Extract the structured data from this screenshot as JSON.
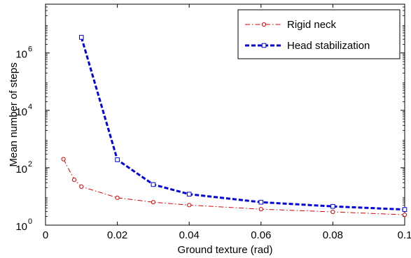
{
  "chart_data": {
    "type": "line",
    "title": "",
    "xlabel": "Ground texture (rad)",
    "ylabel": "Mean number of steps",
    "yscale": "log",
    "xlim": [
      0,
      0.1
    ],
    "ylim": [
      1,
      50000000
    ],
    "grid": false,
    "legend_position": "top-right",
    "x_ticks": [
      {
        "value": 0,
        "label": "0"
      },
      {
        "value": 0.02,
        "label": "0.02"
      },
      {
        "value": 0.04,
        "label": "0.04"
      },
      {
        "value": 0.06,
        "label": "0.06"
      },
      {
        "value": 0.08,
        "label": "0.08"
      },
      {
        "value": 0.1,
        "label": "0.1"
      }
    ],
    "y_ticks": [
      {
        "value": 1,
        "base": "10",
        "exp": "0"
      },
      {
        "value": 100,
        "base": "10",
        "exp": "2"
      },
      {
        "value": 10000,
        "base": "10",
        "exp": "4"
      },
      {
        "value": 1000000,
        "base": "10",
        "exp": "6"
      }
    ],
    "series": [
      {
        "name": "Rigid neck",
        "color": "#dd0000",
        "line_style": "dash-dot",
        "marker": "circle",
        "x": [
          0.005,
          0.008,
          0.01,
          0.02,
          0.03,
          0.04,
          0.06,
          0.08,
          0.1
        ],
        "y": [
          200,
          38,
          22,
          9,
          6.3,
          5,
          3.6,
          2.9,
          2.3
        ]
      },
      {
        "name": "Head stabilization",
        "color": "#0000dd",
        "line_style": "dashed",
        "marker": "square",
        "x": [
          0.01,
          0.02,
          0.03,
          0.04,
          0.06,
          0.08,
          0.1
        ],
        "y": [
          3500000,
          190,
          26,
          12,
          6.3,
          4.5,
          3.5
        ]
      }
    ]
  }
}
